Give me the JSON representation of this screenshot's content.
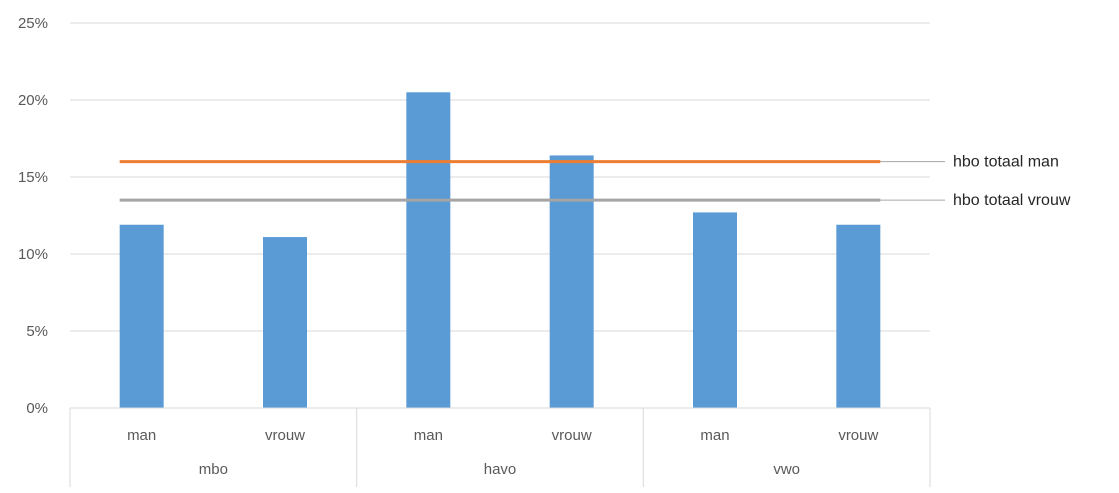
{
  "chart_data": {
    "type": "bar",
    "ylim": [
      0,
      25
    ],
    "yticks": [
      "0%",
      "5%",
      "10%",
      "15%",
      "20%",
      "25%"
    ],
    "ytick_values": [
      0,
      5,
      10,
      15,
      20,
      25
    ],
    "grid": true,
    "groups": [
      {
        "label": "mbo",
        "categories": [
          "man",
          "vrouw"
        ]
      },
      {
        "label": "havo",
        "categories": [
          "man",
          "vrouw"
        ]
      },
      {
        "label": "vwo",
        "categories": [
          "man",
          "vrouw"
        ]
      }
    ],
    "series": [
      {
        "values": [
          11.9,
          11.1,
          20.5,
          16.4,
          12.7,
          11.9
        ],
        "color": "#5b9bd5"
      }
    ],
    "reference_lines": [
      {
        "name": "hbo totaal man",
        "value": 16.0,
        "color": "#ed7d31"
      },
      {
        "name": "hbo totaal vrouw",
        "value": 13.5,
        "color": "#a5a5a5"
      }
    ]
  }
}
